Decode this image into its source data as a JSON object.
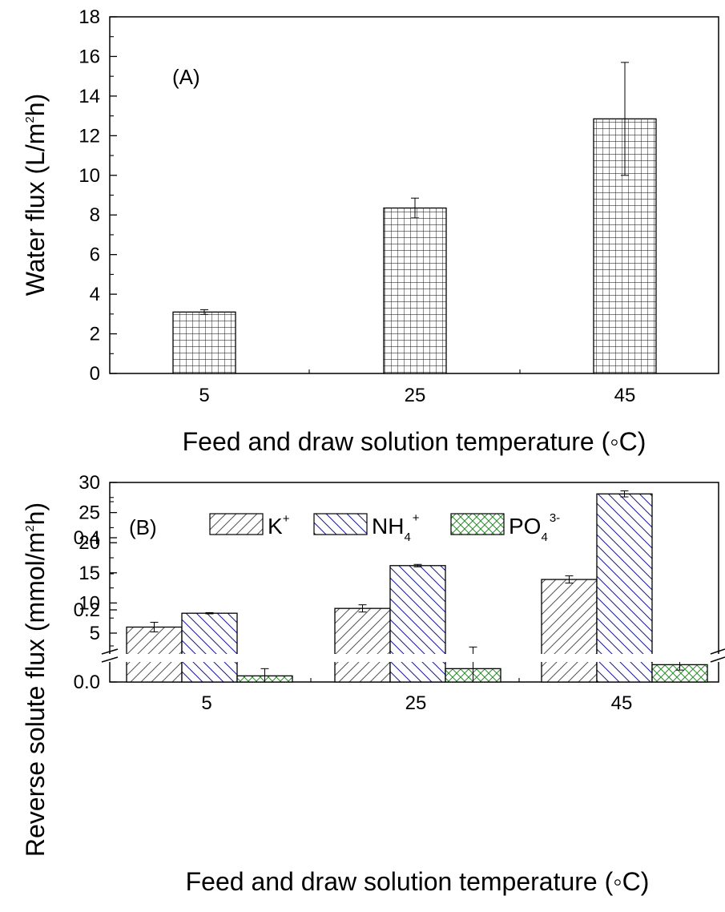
{
  "chart_data": [
    {
      "type": "bar",
      "panel_label": "(A)",
      "xlabel": "Feed and draw solution temperature (◦C)",
      "ylabel": "Water flux (L/m²h)",
      "ylabel_parts": {
        "pre": "Water flux (L/m",
        "sup": "2",
        "post": "h)"
      },
      "categories": [
        "5",
        "25",
        "45"
      ],
      "ylim": [
        0,
        18
      ],
      "y_ticks": [
        "0",
        "2",
        "4",
        "6",
        "8",
        "10",
        "12",
        "14",
        "16",
        "18"
      ],
      "series": [
        {
          "values": [
            3.1,
            8.35,
            12.85
          ],
          "errors": [
            0.12,
            0.5,
            2.85
          ],
          "pattern": "crosshatch-grid",
          "color": "#000000"
        }
      ],
      "grid": false
    },
    {
      "type": "bar",
      "panel_label": "(B)",
      "xlabel": "Feed and draw solution temperature (◦C)",
      "ylabel": "Reverse solute flux (mmol/m²h)",
      "ylabel_parts": {
        "pre": "Reverse solute flux (mmol/m",
        "sup": "2",
        "post": "h)"
      },
      "categories": [
        "5",
        "25",
        "45"
      ],
      "broken_axis": true,
      "ylim_lower": [
        0,
        0.5
      ],
      "ylim_upper": [
        0.5,
        30
      ],
      "y_ticks_lower": [
        "0.0",
        "0.2",
        "0.4"
      ],
      "y_ticks_upper": [
        "5",
        "10",
        "15",
        "20",
        "25",
        "30"
      ],
      "legend_position": "top",
      "series": [
        {
          "name": "K+",
          "label_base": "K",
          "label_sup": "+",
          "label_sub": "",
          "values": [
            6.0,
            9.1,
            13.9
          ],
          "errors": [
            0.8,
            0.6,
            0.6
          ],
          "pattern": "hatch-forward",
          "color": "#555555"
        },
        {
          "name": "NH4+",
          "label_base": "NH",
          "label_sup": "+",
          "label_sub": "4",
          "values": [
            8.3,
            16.2,
            28.1
          ],
          "errors": [
            0.1,
            0.2,
            0.5
          ],
          "pattern": "hatch-back",
          "color": "#1a1a8c"
        },
        {
          "name": "PO43-",
          "label_base": "PO",
          "label_sup": "3-",
          "label_sub": "4",
          "values": [
            0.017,
            0.037,
            0.048
          ],
          "errors": [
            0.02,
            0.06,
            0.015
          ],
          "pattern": "crosshatch-diagonal",
          "color": "#2e8b2e"
        }
      ]
    }
  ]
}
